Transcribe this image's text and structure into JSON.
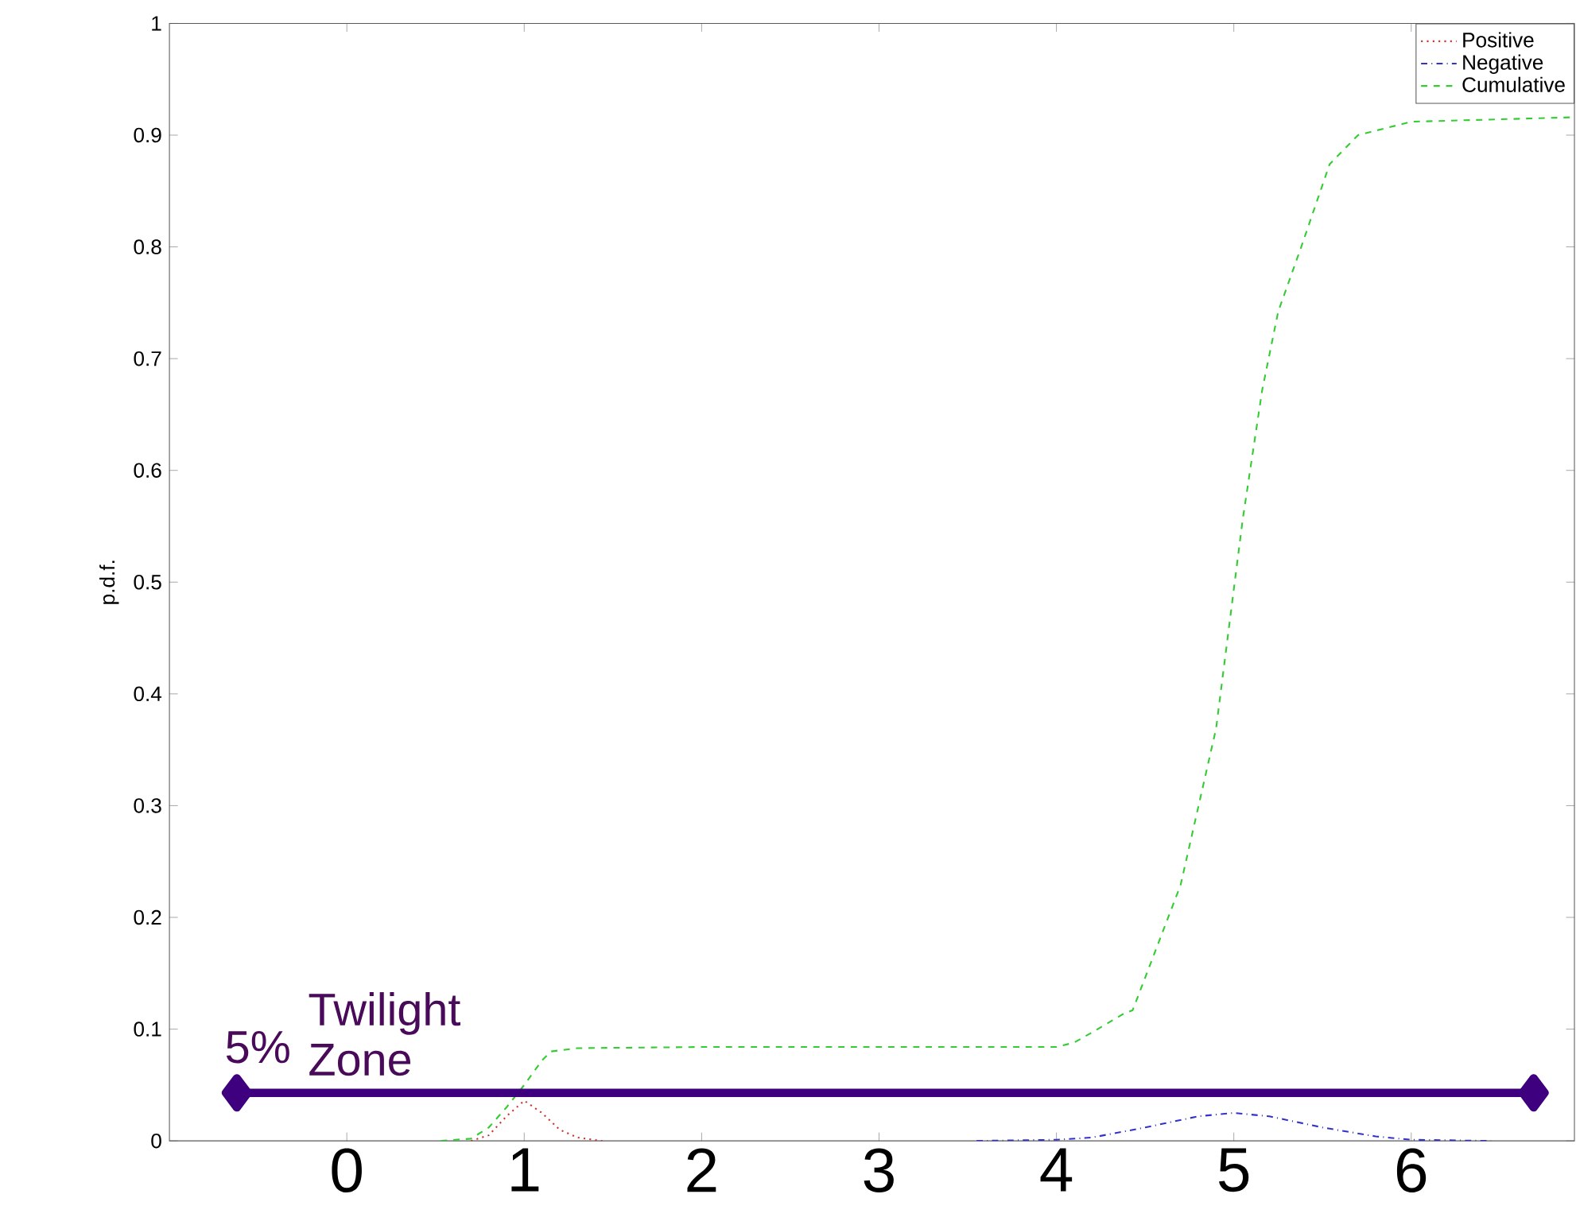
{
  "chart_data": {
    "type": "line",
    "ylabel": "p.d.f.",
    "xlim": [
      -1,
      6.92
    ],
    "ylim": [
      0,
      1
    ],
    "xticks": [
      0,
      1,
      2,
      3,
      4,
      5,
      6
    ],
    "yticks": [
      0,
      0.1,
      0.2,
      0.3,
      0.4,
      0.5,
      0.6,
      0.7,
      0.8,
      0.9,
      1
    ],
    "grid": false,
    "legend": "top right",
    "marker": "none",
    "series": [
      {
        "name": "Positive",
        "color": "#cc3333",
        "line_style": "dotted",
        "x": [
          0.7,
          0.8,
          0.9,
          1.0,
          1.1,
          1.2,
          1.3,
          1.44
        ],
        "values": [
          0,
          0.005,
          0.022,
          0.036,
          0.025,
          0.01,
          0.003,
          0
        ]
      },
      {
        "name": "Negative",
        "color": "#3333cc",
        "line_style": "dashdot",
        "x": [
          3.55,
          4.0,
          4.2,
          4.5,
          4.8,
          5.0,
          5.2,
          5.5,
          5.8,
          6.0,
          6.45
        ],
        "values": [
          0,
          0.001,
          0.003,
          0.012,
          0.022,
          0.025,
          0.022,
          0.012,
          0.004,
          0.001,
          0
        ]
      },
      {
        "name": "Cumulative",
        "color": "#33cc33",
        "line_style": "dashed",
        "x": [
          0.53,
          0.7,
          0.8,
          0.9,
          1.0,
          1.1,
          1.15,
          1.3,
          2.0,
          3.0,
          4.0,
          4.1,
          4.2,
          4.37,
          4.43,
          4.7,
          4.9,
          5.05,
          5.16,
          5.25,
          5.38,
          5.54,
          5.7,
          6.0,
          6.92
        ],
        "values": [
          0,
          0.002,
          0.012,
          0.03,
          0.05,
          0.072,
          0.08,
          0.083,
          0.084,
          0.084,
          0.084,
          0.088,
          0.097,
          0.113,
          0.117,
          0.229,
          0.369,
          0.556,
          0.672,
          0.742,
          0.8,
          0.874,
          0.9,
          0.912,
          0.916
        ]
      },
      {
        "color": "#3f0080",
        "line_style": "solid",
        "marker": "diamond",
        "x": [
          -0.62,
          6.69
        ],
        "values": [
          0.043,
          0.043
        ]
      }
    ],
    "annotations": [
      {
        "text": "5%",
        "x": -0.62,
        "y": 0.043
      },
      {
        "text": "Twilight Zone",
        "x": -0.62,
        "y": 0.043
      }
    ]
  }
}
